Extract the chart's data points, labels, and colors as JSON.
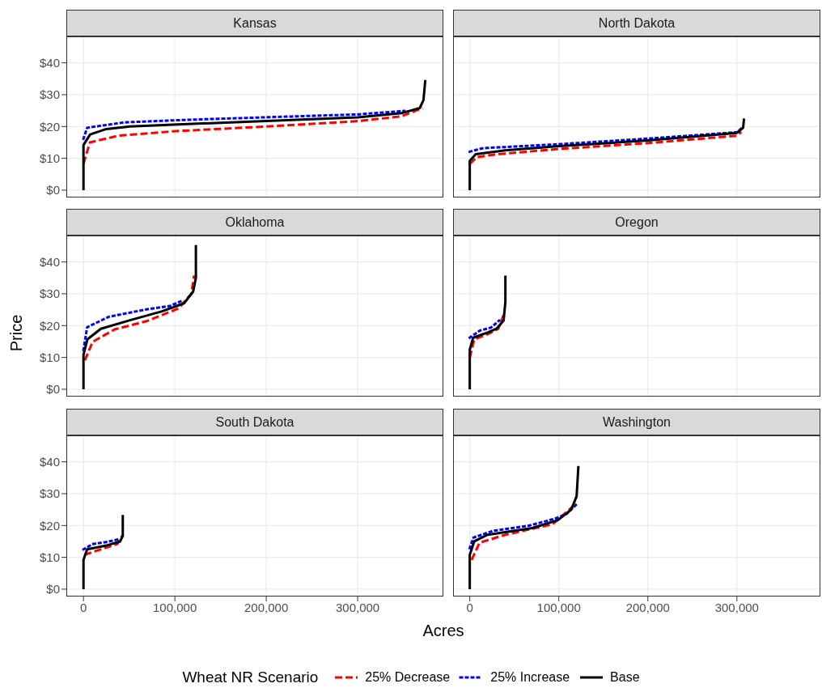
{
  "chart_data": [
    {
      "type": "line",
      "title": "Kansas",
      "legend_title": "Wheat NR Scenario",
      "legend": "bottom",
      "grid": true,
      "tick_labels": "y",
      "xlim": [
        -18750,
        393750
      ],
      "ylim": [
        -2.3,
        48.3
      ],
      "xticks": [
        {
          "value": 0,
          "label": null
        },
        {
          "value": 100000,
          "label": null
        },
        {
          "value": 200000,
          "label": null
        },
        {
          "value": 300000,
          "label": null
        }
      ],
      "yticks": [
        {
          "value": 0,
          "label": "$0"
        },
        {
          "value": 10,
          "label": "$10"
        },
        {
          "value": 20,
          "label": "$20"
        },
        {
          "value": 30,
          "label": "$30"
        },
        {
          "value": 40,
          "label": "$40"
        }
      ],
      "series": [
        {
          "name": "25% Decrease",
          "color": "#ff0000",
          "line_style": "dashed",
          "x": [
            0,
            7000,
            38000,
            98000,
            200000,
            300000,
            348000,
            371000
          ],
          "values": [
            8.3,
            15,
            17.1,
            18.5,
            20,
            21.7,
            23.2,
            25.8
          ]
        },
        {
          "name": "25% Increase",
          "color": "#0000ff",
          "line_style": "dotted",
          "x": [
            0,
            4000,
            45000,
            113000,
            200000,
            300000,
            351000
          ],
          "values": [
            16.2,
            19.6,
            21.3,
            22.1,
            22.9,
            23.8,
            24.9
          ]
        },
        {
          "name": "Base",
          "color": "#000000",
          "line_style": "solid",
          "x": [
            0,
            0,
            7300,
            25000,
            51000,
            98000,
            200000,
            300000,
            348000,
            368000,
            372000,
            374000
          ],
          "values": [
            0,
            14.2,
            17.5,
            19.2,
            20,
            20.6,
            21.7,
            22.9,
            24.2,
            25.8,
            28.3,
            34.6
          ]
        }
      ]
    },
    {
      "type": "line",
      "title": "North Dakota",
      "grid": true,
      "tick_labels": false,
      "xlim": [
        -18750,
        393750
      ],
      "ylim": [
        -2.3,
        48.3
      ],
      "xticks": [
        {
          "value": 0,
          "label": null
        },
        {
          "value": 100000,
          "label": null
        },
        {
          "value": 200000,
          "label": null
        },
        {
          "value": 300000,
          "label": null
        }
      ],
      "yticks": [
        {
          "value": 0,
          "label": null
        },
        {
          "value": 10,
          "label": null
        },
        {
          "value": 20,
          "label": null
        },
        {
          "value": 30,
          "label": null
        },
        {
          "value": 40,
          "label": null
        }
      ],
      "series": [
        {
          "color": "#ff0000",
          "line_style": "dashed",
          "x": [
            0,
            8000,
            28000,
            98000,
            200000,
            300000,
            305000
          ],
          "values": [
            8.3,
            10.4,
            11.2,
            12.9,
            14.8,
            17.1,
            18.3
          ]
        },
        {
          "color": "#0000ff",
          "line_style": "dotted",
          "x": [
            0,
            14700,
            98000,
            200000,
            300000,
            305000
          ],
          "values": [
            12.1,
            13.2,
            14.4,
            16.2,
            18.2,
            19.4
          ]
        },
        {
          "color": "#000000",
          "line_style": "solid",
          "x": [
            0,
            0,
            6700,
            40000,
            98000,
            200000,
            300000,
            307000,
            308000
          ],
          "values": [
            0,
            9.2,
            11.3,
            12.5,
            13.8,
            15.6,
            18,
            19.6,
            22.5
          ]
        }
      ]
    },
    {
      "type": "line",
      "title": "Oklahoma",
      "ylabel": "Price",
      "grid": true,
      "tick_labels": "y",
      "xlim": [
        -18750,
        393750
      ],
      "ylim": [
        -2.3,
        48.3
      ],
      "xticks": [
        {
          "value": 0,
          "label": null
        },
        {
          "value": 100000,
          "label": null
        },
        {
          "value": 200000,
          "label": null
        },
        {
          "value": 300000,
          "label": null
        }
      ],
      "yticks": [
        {
          "value": 0,
          "label": "$0"
        },
        {
          "value": 10,
          "label": "$10"
        },
        {
          "value": 20,
          "label": "$20"
        },
        {
          "value": 30,
          "label": "$30"
        },
        {
          "value": 40,
          "label": "$40"
        }
      ],
      "series": [
        {
          "color": "#ff0000",
          "line_style": "dashed",
          "x": [
            1500,
            10000,
            34000,
            69000,
            104000,
            118000,
            121000
          ],
          "values": [
            9.1,
            14.9,
            18.8,
            21.4,
            25.4,
            30,
            35.7
          ]
        },
        {
          "color": "#0000ff",
          "line_style": "dotted",
          "x": [
            0,
            4000,
            28000,
            69000,
            95000,
            110000
          ],
          "values": [
            12.4,
            19.5,
            22.8,
            25.1,
            26.2,
            28.1
          ]
        },
        {
          "color": "#000000",
          "line_style": "solid",
          "x": [
            0,
            0,
            4300,
            19000,
            51000,
            86000,
            110000,
            120000,
            123000,
            123000
          ],
          "values": [
            0,
            10.8,
            15.7,
            19,
            21.7,
            24.5,
            27,
            30.7,
            35,
            45.3
          ]
        }
      ]
    },
    {
      "type": "line",
      "title": "Oregon",
      "grid": true,
      "tick_labels": false,
      "xlim": [
        -18750,
        393750
      ],
      "ylim": [
        -2.3,
        48.3
      ],
      "xticks": [
        {
          "value": 0,
          "label": null
        },
        {
          "value": 100000,
          "label": null
        },
        {
          "value": 200000,
          "label": null
        },
        {
          "value": 300000,
          "label": null
        }
      ],
      "yticks": [
        {
          "value": 0,
          "label": null
        },
        {
          "value": 10,
          "label": null
        },
        {
          "value": 20,
          "label": null
        },
        {
          "value": 30,
          "label": null
        },
        {
          "value": 40,
          "label": null
        }
      ],
      "series": [
        {
          "color": "#ff0000",
          "line_style": "dashed",
          "x": [
            0,
            5000,
            20000,
            32000,
            38000
          ],
          "values": [
            9.9,
            15.7,
            17.3,
            19,
            23.3
          ]
        },
        {
          "color": "#0000ff",
          "line_style": "dotted",
          "x": [
            0,
            11000,
            24000,
            33000
          ],
          "values": [
            16.2,
            18.4,
            19.4,
            21.6
          ]
        },
        {
          "color": "#000000",
          "line_style": "solid",
          "x": [
            0,
            0,
            3800,
            20000,
            30000,
            38000,
            40000,
            40000
          ],
          "values": [
            0,
            12.4,
            16.2,
            17.8,
            19,
            21.6,
            27.5,
            35.7
          ]
        }
      ]
    },
    {
      "type": "line",
      "title": "South Dakota",
      "xlabel": "Acres",
      "grid": true,
      "xlim": [
        -18750,
        393750
      ],
      "ylim": [
        -2.3,
        48.3
      ],
      "xticks": [
        {
          "value": 0,
          "label": "0"
        },
        {
          "value": 100000,
          "label": "100,000"
        },
        {
          "value": 200000,
          "label": "200,000"
        },
        {
          "value": 300000,
          "label": "300,000"
        }
      ],
      "yticks": [
        {
          "value": 0,
          "label": "$0"
        },
        {
          "value": 10,
          "label": "$10"
        },
        {
          "value": 20,
          "label": "$20"
        },
        {
          "value": 30,
          "label": "$30"
        },
        {
          "value": 40,
          "label": "$40"
        }
      ],
      "series": [
        {
          "color": "#ff0000",
          "line_style": "dashed",
          "x": [
            1000,
            19000,
            37000,
            43000
          ],
          "values": [
            10.8,
            12.5,
            14.2,
            17.1
          ]
        },
        {
          "color": "#0000ff",
          "line_style": "dotted",
          "x": [
            0,
            10000,
            25000,
            40000
          ],
          "values": [
            12.5,
            14.2,
            14.8,
            15.8
          ]
        },
        {
          "color": "#000000",
          "line_style": "solid",
          "x": [
            0,
            0,
            4000,
            25000,
            40000,
            43000,
            43000
          ],
          "values": [
            0,
            9.2,
            12.5,
            13.7,
            15,
            16.7,
            23.3
          ]
        }
      ]
    },
    {
      "type": "line",
      "title": "Washington",
      "grid": true,
      "tick_labels": "x",
      "xlim": [
        -18750,
        393750
      ],
      "ylim": [
        -2.3,
        48.3
      ],
      "xticks": [
        {
          "value": 0,
          "label": "0"
        },
        {
          "value": 100000,
          "label": "100,000"
        },
        {
          "value": 200000,
          "label": "200,000"
        },
        {
          "value": 300000,
          "label": "300,000"
        }
      ],
      "yticks": [
        {
          "value": 0,
          "label": null
        },
        {
          "value": 10,
          "label": null
        },
        {
          "value": 20,
          "label": null
        },
        {
          "value": 30,
          "label": null
        },
        {
          "value": 40,
          "label": null
        }
      ],
      "series": [
        {
          "color": "#ff0000",
          "line_style": "dashed",
          "x": [
            2000,
            11000,
            40000,
            93000,
            115000
          ],
          "values": [
            9.2,
            14.6,
            17.1,
            20.4,
            25.8
          ]
        },
        {
          "color": "#0000ff",
          "line_style": "dotted",
          "x": [
            0,
            4000,
            26000,
            67000,
            95000,
            108000,
            120000
          ],
          "values": [
            12.9,
            16.2,
            18.3,
            20,
            22.1,
            23.5,
            26.7
          ]
        },
        {
          "color": "#000000",
          "line_style": "solid",
          "x": [
            0,
            0,
            5000,
            20000,
            70000,
            99000,
            114000,
            120000,
            122000
          ],
          "values": [
            0,
            10.8,
            15,
            17.1,
            19.2,
            21.7,
            25,
            29.2,
            38.7
          ]
        }
      ]
    }
  ]
}
